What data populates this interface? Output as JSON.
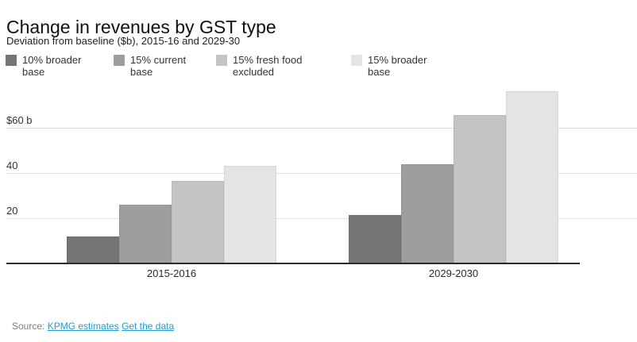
{
  "header": {
    "title": "Change in revenues by GST type",
    "subtitle": "Deviation from baseline ($b), 2015-16 and 2029-30"
  },
  "legend": {
    "items": [
      {
        "label": "10% broader base",
        "color": "#757575"
      },
      {
        "label": "15% current base",
        "color": "#9e9e9e"
      },
      {
        "label": "15% fresh food excluded",
        "color": "#c4c4c4"
      },
      {
        "label": "15% broader base",
        "color": "#e4e4e4"
      }
    ]
  },
  "chart_data": {
    "type": "bar",
    "title": "Change in revenues by GST type",
    "subtitle": "Deviation from baseline ($b), 2015-16 and 2029-30",
    "categories": [
      "2015-2016",
      "2029-2030"
    ],
    "series": [
      {
        "name": "10% broader base",
        "color": "#757575",
        "values": [
          12,
          21.5
        ]
      },
      {
        "name": "15% current base",
        "color": "#9e9e9e",
        "values": [
          26,
          44
        ]
      },
      {
        "name": "15% fresh food excluded",
        "color": "#c4c4c4",
        "values": [
          36.5,
          65.5
        ]
      },
      {
        "name": "15% broader base",
        "color": "#e4e4e4",
        "values": [
          43,
          76
        ]
      }
    ],
    "yticks": [
      {
        "value": 20,
        "label": "20"
      },
      {
        "value": 40,
        "label": "40"
      },
      {
        "value": 60,
        "label": "$60 b"
      }
    ],
    "ylim": [
      0,
      78
    ],
    "xlabel": "",
    "ylabel": "Deviation from baseline ($b)",
    "grid": "horizontal",
    "legend_position": "top"
  },
  "footer": {
    "source_label": "Source:",
    "links": [
      {
        "text": "KPMG estimates"
      },
      {
        "text": "Get the data"
      }
    ],
    "link_color": "#1e9bd7"
  }
}
